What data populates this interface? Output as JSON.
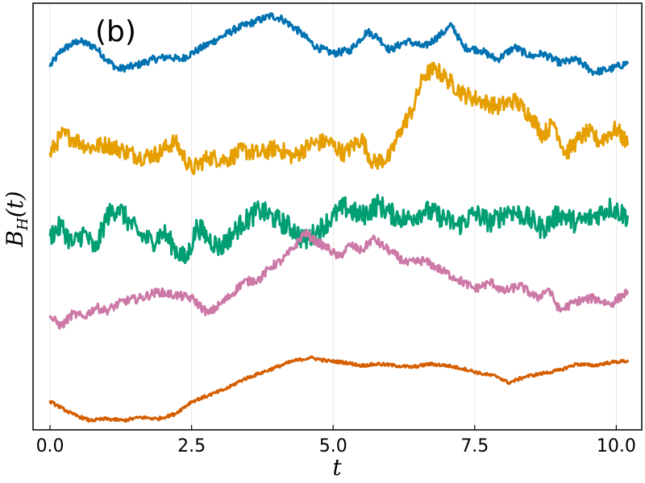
{
  "chart_data": {
    "type": "line",
    "panel_label": "(b)",
    "xlabel": "t",
    "ylabel_main": "B",
    "ylabel_sub": "H",
    "ylabel_tail": "(t)",
    "xlim": [
      -0.3,
      10.45
    ],
    "xticks": [
      0.0,
      2.5,
      5.0,
      7.5,
      10.0
    ],
    "xtick_labels": [
      "0.0",
      "2.5",
      "5.0",
      "7.5",
      "10.0"
    ],
    "y_ticks_shown": false,
    "ylim": [
      -1.2,
      12.4
    ],
    "grid": {
      "vertical": true,
      "horizontal": false
    },
    "series": [
      {
        "color": "#0072B2",
        "x": [
          0.0,
          0.2,
          0.5,
          0.8,
          1.0,
          1.2,
          1.5,
          1.8,
          2.1,
          2.3,
          2.6,
          3.0,
          3.3,
          3.6,
          3.9,
          4.1,
          4.4,
          4.7,
          5.0,
          5.3,
          5.6,
          5.8,
          6.0,
          6.3,
          6.6,
          6.9,
          7.1,
          7.3,
          7.6,
          7.9,
          8.2,
          8.5,
          8.7,
          9.0,
          9.3,
          9.6,
          9.9,
          10.2
        ],
        "values": [
          10.4,
          10.9,
          11.2,
          11.0,
          10.6,
          10.3,
          10.4,
          10.6,
          10.7,
          10.6,
          10.9,
          11.3,
          11.6,
          11.8,
          12.0,
          11.9,
          11.5,
          11.0,
          10.8,
          10.9,
          11.5,
          11.3,
          10.9,
          11.2,
          11.0,
          11.4,
          11.7,
          11.0,
          10.9,
          10.6,
          11.0,
          10.7,
          10.8,
          10.5,
          10.6,
          10.2,
          10.3,
          10.5
        ]
      },
      {
        "color": "#E69F00",
        "x": [
          0.0,
          0.2,
          0.4,
          0.7,
          1.0,
          1.3,
          1.6,
          1.9,
          2.2,
          2.5,
          2.8,
          3.1,
          3.4,
          3.7,
          4.0,
          4.3,
          4.6,
          4.9,
          5.2,
          5.5,
          5.7,
          6.0,
          6.2,
          6.4,
          6.6,
          6.8,
          7.0,
          7.3,
          7.6,
          7.9,
          8.2,
          8.5,
          8.7,
          8.9,
          9.1,
          9.3,
          9.5,
          9.7,
          10.0,
          10.2
        ],
        "values": [
          7.6,
          8.2,
          8.1,
          7.8,
          7.9,
          7.7,
          7.5,
          7.6,
          8.0,
          7.1,
          7.5,
          7.4,
          7.7,
          7.6,
          7.8,
          7.5,
          7.9,
          8.0,
          7.6,
          8.1,
          7.3,
          7.5,
          8.4,
          9.0,
          10.1,
          10.3,
          10.0,
          9.5,
          9.3,
          9.1,
          9.3,
          8.8,
          8.2,
          8.6,
          7.6,
          8.0,
          8.3,
          8.0,
          8.4,
          7.9
        ]
      },
      {
        "color": "#009E73",
        "x": [
          0.0,
          0.2,
          0.4,
          0.6,
          0.8,
          1.0,
          1.2,
          1.4,
          1.6,
          1.8,
          2.0,
          2.2,
          2.4,
          2.6,
          2.8,
          3.0,
          3.2,
          3.4,
          3.7,
          4.0,
          4.3,
          4.5,
          4.7,
          5.0,
          5.2,
          5.5,
          5.8,
          6.0,
          6.3,
          6.6,
          6.9,
          7.2,
          7.5,
          7.8,
          8.1,
          8.4,
          8.7,
          9.0,
          9.3,
          9.6,
          9.9,
          10.2
        ],
        "values": [
          5.0,
          5.3,
          4.7,
          5.1,
          4.5,
          5.6,
          5.9,
          5.4,
          5.0,
          4.8,
          5.1,
          4.6,
          4.2,
          5.3,
          4.9,
          4.6,
          5.0,
          5.4,
          5.8,
          5.5,
          5.2,
          4.8,
          5.1,
          5.6,
          5.9,
          5.6,
          6.0,
          5.7,
          5.5,
          5.8,
          5.6,
          5.3,
          5.7,
          5.4,
          5.8,
          5.6,
          5.2,
          5.7,
          5.4,
          5.6,
          5.9,
          5.6
        ]
      },
      {
        "color": "#CC79A7",
        "x": [
          0.0,
          0.2,
          0.4,
          0.6,
          0.8,
          1.0,
          1.3,
          1.6,
          1.9,
          2.2,
          2.5,
          2.8,
          3.0,
          3.2,
          3.4,
          3.7,
          3.9,
          4.1,
          4.3,
          4.5,
          4.7,
          4.9,
          5.1,
          5.3,
          5.5,
          5.7,
          6.0,
          6.3,
          6.6,
          6.9,
          7.2,
          7.5,
          7.8,
          8.0,
          8.3,
          8.6,
          8.8,
          9.0,
          9.3,
          9.6,
          9.9,
          10.2
        ],
        "values": [
          2.4,
          2.1,
          2.5,
          2.4,
          2.7,
          2.6,
          2.9,
          3.0,
          3.2,
          3.1,
          3.0,
          2.5,
          2.8,
          3.1,
          3.5,
          3.6,
          4.0,
          4.2,
          4.6,
          5.1,
          4.8,
          4.6,
          4.3,
          4.7,
          4.5,
          4.9,
          4.5,
          4.1,
          4.2,
          3.9,
          3.6,
          3.3,
          3.5,
          3.2,
          3.4,
          3.0,
          3.3,
          2.6,
          2.9,
          3.0,
          2.8,
          3.2
        ]
      },
      {
        "color": "#D55E00",
        "x": [
          0.0,
          0.2,
          0.4,
          0.7,
          1.0,
          1.3,
          1.6,
          1.9,
          2.2,
          2.5,
          2.8,
          3.1,
          3.4,
          3.7,
          4.0,
          4.3,
          4.6,
          4.9,
          5.2,
          5.5,
          5.8,
          6.1,
          6.4,
          6.7,
          7.0,
          7.3,
          7.6,
          7.9,
          8.1,
          8.4,
          8.7,
          9.0,
          9.3,
          9.6,
          9.9,
          10.2
        ],
        "values": [
          -0.3,
          -0.5,
          -0.7,
          -0.9,
          -0.85,
          -0.9,
          -0.8,
          -0.85,
          -0.7,
          -0.3,
          -0.1,
          0.1,
          0.4,
          0.6,
          0.8,
          1.0,
          1.1,
          1.0,
          0.95,
          0.85,
          0.9,
          0.85,
          0.8,
          0.9,
          0.85,
          0.75,
          0.6,
          0.5,
          0.3,
          0.5,
          0.6,
          0.7,
          0.9,
          0.85,
          0.95,
          1.0
        ]
      }
    ]
  }
}
